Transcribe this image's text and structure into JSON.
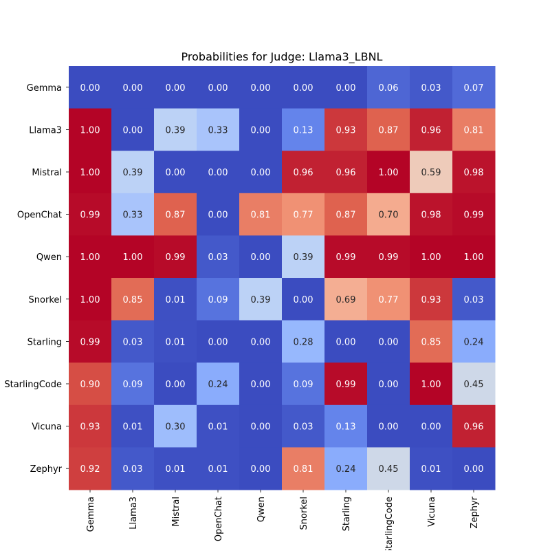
{
  "chart_data": {
    "type": "heatmap",
    "title": "Probabilities for Judge: Llama3_LBNL",
    "xlabel": "",
    "ylabel": "",
    "row_labels": [
      "Gemma",
      "Llama3",
      "Mistral",
      "OpenChat",
      "Qwen",
      "Snorkel",
      "Starling",
      "StarlingCode",
      "Vicuna",
      "Zephyr"
    ],
    "col_labels": [
      "Gemma",
      "Llama3",
      "Mistral",
      "OpenChat",
      "Qwen",
      "Snorkel",
      "Starling",
      "StarlingCode",
      "Vicuna",
      "Zephyr"
    ],
    "values": [
      [
        0.0,
        0.0,
        0.0,
        0.0,
        0.0,
        0.0,
        0.0,
        0.06,
        0.03,
        0.07
      ],
      [
        1.0,
        0.0,
        0.39,
        0.33,
        0.0,
        0.13,
        0.93,
        0.87,
        0.96,
        0.81
      ],
      [
        1.0,
        0.39,
        0.0,
        0.0,
        0.0,
        0.96,
        0.96,
        1.0,
        0.59,
        0.98
      ],
      [
        0.99,
        0.33,
        0.87,
        0.0,
        0.81,
        0.77,
        0.87,
        0.7,
        0.98,
        0.99
      ],
      [
        1.0,
        1.0,
        0.99,
        0.03,
        0.0,
        0.39,
        0.99,
        0.99,
        1.0,
        1.0
      ],
      [
        1.0,
        0.85,
        0.01,
        0.09,
        0.39,
        0.0,
        0.69,
        0.77,
        0.93,
        0.03
      ],
      [
        0.99,
        0.03,
        0.01,
        0.0,
        0.0,
        0.28,
        0.0,
        0.0,
        0.85,
        0.24
      ],
      [
        0.9,
        0.09,
        0.0,
        0.24,
        0.0,
        0.09,
        0.99,
        0.0,
        1.0,
        0.45
      ],
      [
        0.93,
        0.01,
        0.3,
        0.01,
        0.0,
        0.03,
        0.13,
        0.0,
        0.0,
        0.96
      ],
      [
        0.92,
        0.03,
        0.01,
        0.01,
        0.0,
        0.81,
        0.24,
        0.45,
        0.01,
        0.0
      ]
    ],
    "colormap": "coolwarm",
    "grid": false,
    "legend": "none"
  }
}
